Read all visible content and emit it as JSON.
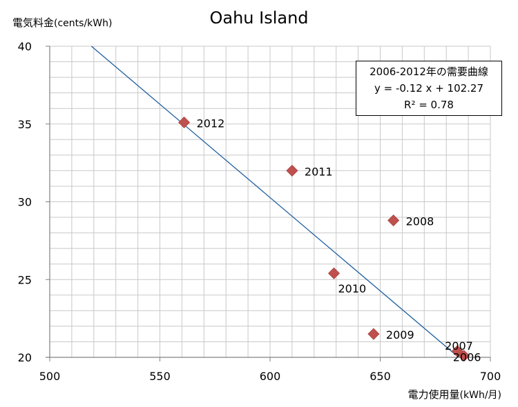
{
  "chart_data": {
    "type": "scatter",
    "title": "Oahu Island",
    "ylabel": "電気料金",
    "ylabel_unit": "(cents/kWh)",
    "xlabel": "電力使用量",
    "xlabel_unit": "(kWh/月)",
    "xlim": [
      500,
      700
    ],
    "ylim": [
      20,
      40
    ],
    "x_ticks": [
      "500",
      "550",
      "600",
      "650",
      "700"
    ],
    "y_ticks": [
      "20",
      "25",
      "30",
      "35",
      "40"
    ],
    "grid": true,
    "marker_color": "#c0504d",
    "trendline_color": "#1f5f9f",
    "points": [
      {
        "label": "2012",
        "x": 561,
        "y": 35.1
      },
      {
        "label": "2011",
        "x": 610,
        "y": 32.0
      },
      {
        "label": "2008",
        "x": 656,
        "y": 28.8
      },
      {
        "label": "2010",
        "x": 629,
        "y": 25.4
      },
      {
        "label": "2009",
        "x": 647,
        "y": 21.5
      },
      {
        "label": "2007",
        "x": 685,
        "y": 20.4
      },
      {
        "label": "2006",
        "x": 688,
        "y": 20.1
      }
    ],
    "trendline": {
      "slope": -0.12,
      "intercept": 102.27
    },
    "annotation": {
      "title": "2006-2012年の需要曲線",
      "equation": "y = -0.12 x + 102.27",
      "r2": "R² = 0.78"
    }
  }
}
